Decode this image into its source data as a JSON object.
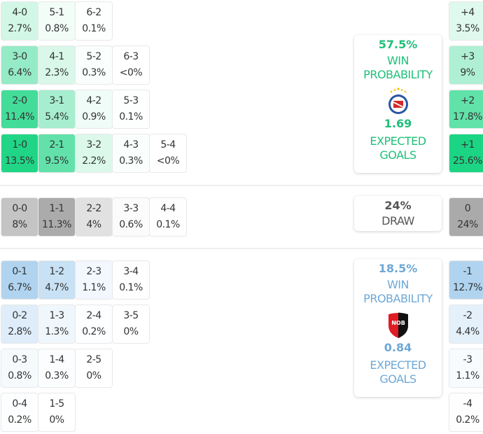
{
  "home": {
    "win_pct": "57.5%",
    "win_label_1": "WIN",
    "win_label_2": "PROBABILITY",
    "xg": "1.69",
    "xg_label_1": "EXPECTED",
    "xg_label_2": "GOALS",
    "crest": "argentinos-juniors-crest",
    "color": "#1fc07a",
    "scores": [
      [
        "4-0",
        "2.7%"
      ],
      [
        "5-1",
        "0.8%"
      ],
      [
        "6-2",
        "0.1%"
      ],
      [
        "3-0",
        "6.4%"
      ],
      [
        "4-1",
        "2.3%"
      ],
      [
        "5-2",
        "0.3%"
      ],
      [
        "6-3",
        "<0%"
      ],
      [
        "2-0",
        "11.4%"
      ],
      [
        "3-1",
        "5.4%"
      ],
      [
        "4-2",
        "0.9%"
      ],
      [
        "5-3",
        "0.1%"
      ],
      [
        "1-0",
        "13.5%"
      ],
      [
        "2-1",
        "9.5%"
      ],
      [
        "3-2",
        "2.2%"
      ],
      [
        "4-3",
        "0.3%"
      ],
      [
        "5-4",
        "<0%"
      ]
    ],
    "margins": [
      [
        "+4",
        "3.5%"
      ],
      [
        "+3",
        "9%"
      ],
      [
        "+2",
        "17.8%"
      ],
      [
        "+1",
        "25.6%"
      ]
    ]
  },
  "draw": {
    "pct": "24%",
    "label": "DRAW",
    "scores": [
      [
        "0-0",
        "8%"
      ],
      [
        "1-1",
        "11.3%"
      ],
      [
        "2-2",
        "4%"
      ],
      [
        "3-3",
        "0.6%"
      ],
      [
        "4-4",
        "0.1%"
      ]
    ],
    "margin": [
      "0",
      "24%"
    ]
  },
  "away": {
    "win_pct": "18.5%",
    "win_label_1": "WIN",
    "win_label_2": "PROBABILITY",
    "xg": "0.84",
    "xg_label_1": "EXPECTED",
    "xg_label_2": "GOALS",
    "crest": "newells-old-boys-crest",
    "crest_text": "NOB",
    "color": "#6ea8d6",
    "scores": [
      [
        "0-1",
        "6.7%"
      ],
      [
        "1-2",
        "4.7%"
      ],
      [
        "2-3",
        "1.1%"
      ],
      [
        "3-4",
        "0.1%"
      ],
      [
        "0-2",
        "2.8%"
      ],
      [
        "1-3",
        "1.3%"
      ],
      [
        "2-4",
        "0.2%"
      ],
      [
        "3-5",
        "0%"
      ],
      [
        "0-3",
        "0.8%"
      ],
      [
        "1-4",
        "0.3%"
      ],
      [
        "2-5",
        "0%"
      ],
      [
        "0-4",
        "0.2%"
      ],
      [
        "1-5",
        "0%"
      ]
    ],
    "margins": [
      [
        "-1",
        "12.7%"
      ],
      [
        "-2",
        "4.4%"
      ],
      [
        "-3",
        "1.1%"
      ],
      [
        "-4",
        "0.2%"
      ]
    ]
  }
}
